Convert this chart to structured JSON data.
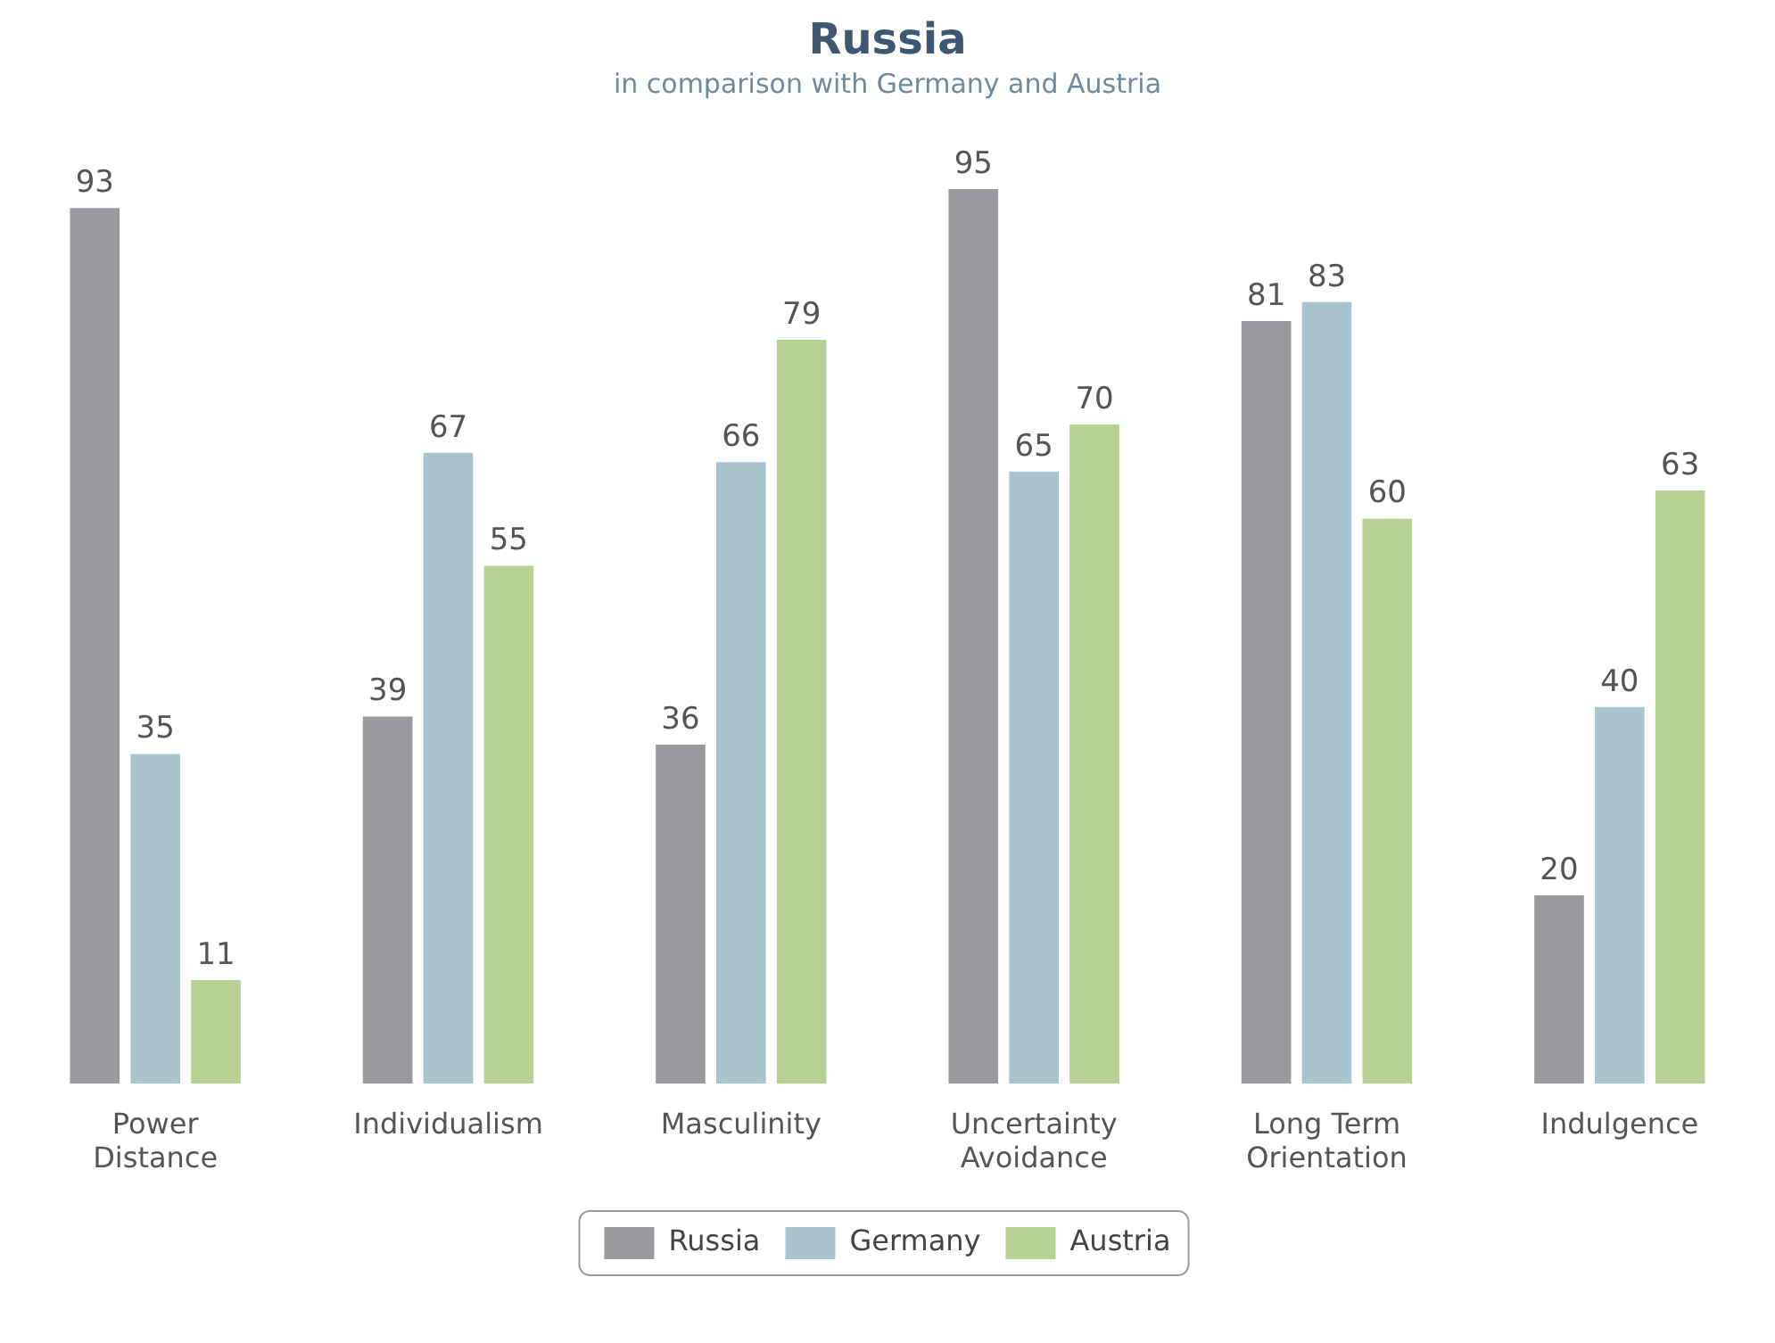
{
  "chart_data": {
    "type": "bar",
    "title": "Russia",
    "subtitle": "in comparison with Germany and Austria",
    "categories": [
      "Power Distance",
      "Individualism",
      "Masculinity",
      "Uncertainty Avoidance",
      "Long Term Orientation",
      "Indulgence"
    ],
    "series": [
      {
        "name": "Russia",
        "color": "#9b999d",
        "values": [
          93,
          39,
          36,
          95,
          81,
          20
        ]
      },
      {
        "name": "Germany",
        "color": "#a9c4cc",
        "values": [
          35,
          67,
          66,
          65,
          83,
          40
        ]
      },
      {
        "name": "Austria",
        "color": "#b9d095",
        "values": [
          11,
          55,
          79,
          70,
          60,
          63
        ]
      }
    ],
    "data_labels": true,
    "grid": false,
    "legend": "bottom"
  }
}
